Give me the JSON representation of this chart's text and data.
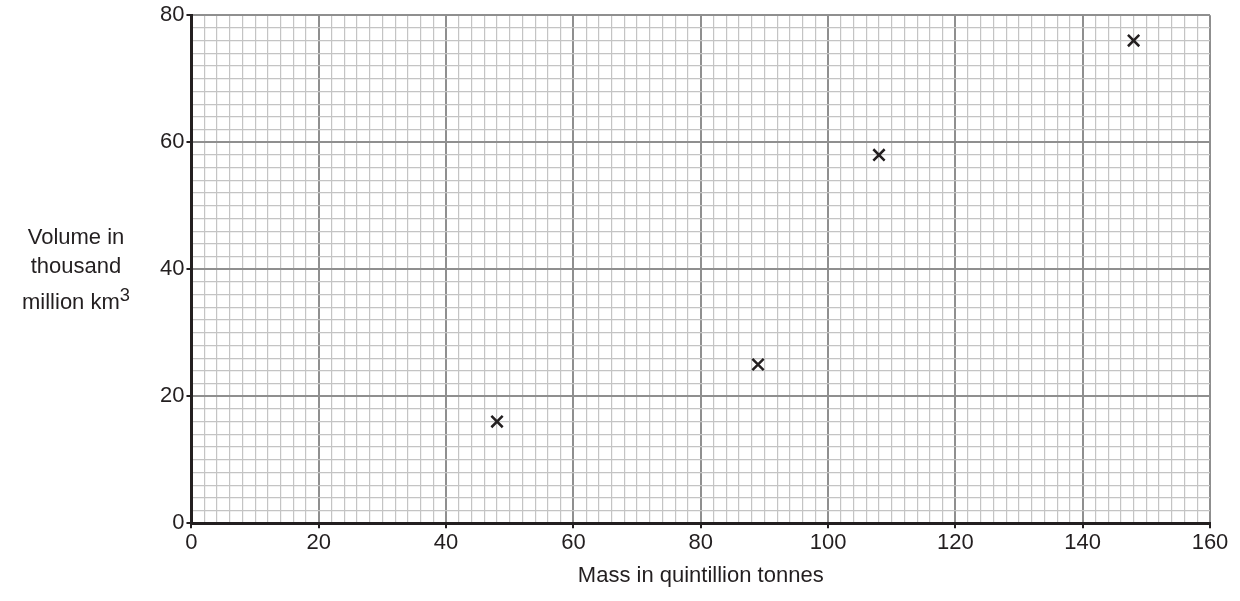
{
  "chart_data": {
    "type": "scatter",
    "xlabel": "Mass in quintillion tonnes",
    "ylabel": "Volume in thousand million km$^{3}$",
    "series": [
      {
        "color": "#231f20",
        "x": [
          48,
          89,
          108,
          148
        ],
        "values": [
          16,
          25,
          58,
          76
        ]
      }
    ],
    "marker": "cross",
    "grid": true,
    "legend": false,
    "xlim": [
      0,
      160
    ],
    "ylim": [
      0,
      80
    ],
    "xticks": [
      0,
      {
        "value": 2,
        "label": null
      },
      {
        "value": 4,
        "label": null
      },
      {
        "value": 6,
        "label": null
      },
      {
        "value": 8,
        "label": null
      },
      {
        "value": 10,
        "label": null
      },
      {
        "value": 12,
        "label": null
      },
      {
        "value": 14,
        "label": null
      },
      {
        "value": 16,
        "label": null
      },
      {
        "value": 18,
        "label": null
      },
      20,
      {
        "value": 22,
        "label": null
      },
      {
        "value": 24,
        "label": null
      },
      {
        "value": 26,
        "label": null
      },
      {
        "value": 28,
        "label": null
      },
      {
        "value": 30,
        "label": null
      },
      {
        "value": 32,
        "label": null
      },
      {
        "value": 34,
        "label": null
      },
      {
        "value": 36,
        "label": null
      },
      {
        "value": 38,
        "label": null
      },
      40,
      {
        "value": 42,
        "label": null
      },
      {
        "value": 44,
        "label": null
      },
      {
        "value": 46,
        "label": null
      },
      {
        "value": 48,
        "label": null
      },
      {
        "value": 50,
        "label": null
      },
      {
        "value": 52,
        "label": null
      },
      {
        "value": 54,
        "label": null
      },
      {
        "value": 56,
        "label": null
      },
      {
        "value": 58,
        "label": null
      },
      60,
      {
        "value": 62,
        "label": null
      },
      {
        "value": 64,
        "label": null
      },
      {
        "value": 66,
        "label": null
      },
      {
        "value": 68,
        "label": null
      },
      {
        "value": 70,
        "label": null
      },
      {
        "value": 72,
        "label": null
      },
      {
        "value": 74,
        "label": null
      },
      {
        "value": 76,
        "label": null
      },
      {
        "value": 78,
        "label": null
      },
      80,
      {
        "value": 82,
        "label": null
      },
      {
        "value": 84,
        "label": null
      },
      {
        "value": 86,
        "label": null
      },
      {
        "value": 88,
        "label": null
      },
      {
        "value": 90,
        "label": null
      },
      {
        "value": 92,
        "label": null
      },
      {
        "value": 94,
        "label": null
      },
      {
        "value": 96,
        "label": null
      },
      {
        "value": 98,
        "label": null
      },
      100,
      {
        "value": 102,
        "label": null
      },
      {
        "value": 104,
        "label": null
      },
      {
        "value": 106,
        "label": null
      },
      {
        "value": 108,
        "label": null
      },
      {
        "value": 110,
        "label": null
      },
      {
        "value": 112,
        "label": null
      },
      {
        "value": 114,
        "label": null
      },
      {
        "value": 116,
        "label": null
      },
      {
        "value": 118,
        "label": null
      },
      120,
      {
        "value": 122,
        "label": null
      },
      {
        "value": 124,
        "label": null
      },
      {
        "value": 126,
        "label": null
      },
      {
        "value": 128,
        "label": null
      },
      {
        "value": 130,
        "label": null
      },
      {
        "value": 132,
        "label": null
      },
      {
        "value": 134,
        "label": null
      },
      {
        "value": 136,
        "label": null
      },
      {
        "value": 138,
        "label": null
      },
      140,
      {
        "value": 142,
        "label": null
      },
      {
        "value": 144,
        "label": null
      },
      {
        "value": 146,
        "label": null
      },
      {
        "value": 148,
        "label": null
      },
      {
        "value": 150,
        "label": null
      },
      {
        "value": 152,
        "label": null
      },
      {
        "value": 154,
        "label": null
      },
      {
        "value": 156,
        "label": null
      },
      {
        "value": 158,
        "label": null
      },
      160
    ],
    "yticks": [
      0,
      {
        "value": 2,
        "label": null
      },
      {
        "value": 4,
        "label": null
      },
      {
        "value": 6,
        "label": null
      },
      {
        "value": 8,
        "label": null
      },
      {
        "value": 10,
        "label": null
      },
      {
        "value": 12,
        "label": null
      },
      {
        "value": 14,
        "label": null
      },
      {
        "value": 16,
        "label": null
      },
      {
        "value": 18,
        "label": null
      },
      20,
      {
        "value": 22,
        "label": null
      },
      {
        "value": 24,
        "label": null
      },
      {
        "value": 26,
        "label": null
      },
      {
        "value": 28,
        "label": null
      },
      {
        "value": 30,
        "label": null
      },
      {
        "value": 32,
        "label": null
      },
      {
        "value": 34,
        "label": null
      },
      {
        "value": 36,
        "label": null
      },
      {
        "value": 38,
        "label": null
      },
      40,
      {
        "value": 42,
        "label": null
      },
      {
        "value": 44,
        "label": null
      },
      {
        "value": 46,
        "label": null
      },
      {
        "value": 48,
        "label": null
      },
      {
        "value": 50,
        "label": null
      },
      {
        "value": 52,
        "label": null
      },
      {
        "value": 54,
        "label": null
      },
      {
        "value": 56,
        "label": null
      },
      {
        "value": 58,
        "label": null
      },
      60,
      {
        "value": 62,
        "label": null
      },
      {
        "value": 64,
        "label": null
      },
      {
        "value": 66,
        "label": null
      },
      {
        "value": 68,
        "label": null
      },
      {
        "value": 70,
        "label": null
      },
      {
        "value": 72,
        "label": null
      },
      {
        "value": 74,
        "label": null
      },
      {
        "value": 76,
        "label": null
      },
      {
        "value": 78,
        "label": null
      },
      80
    ]
  }
}
